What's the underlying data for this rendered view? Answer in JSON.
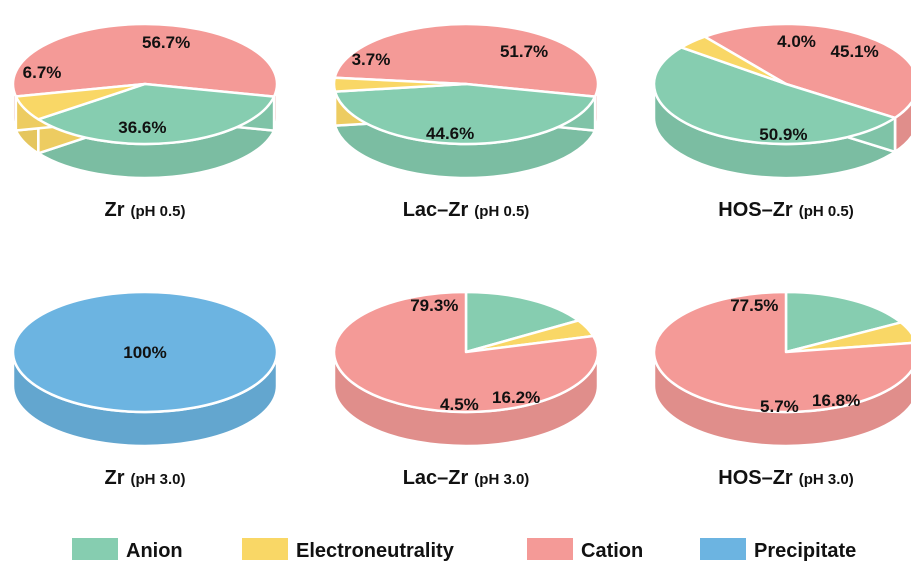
{
  "colors": {
    "anion": "#86cdb0",
    "electroneutrality": "#f9d766",
    "cation": "#f49a97",
    "precipitate": "#6cb4e1"
  },
  "chart_data": [
    {
      "type": "pie",
      "title": "Zr",
      "subtitle": "(pH 0.5)",
      "slices": [
        {
          "name": "Cation",
          "value": 56.7,
          "label": "56.7%"
        },
        {
          "name": "Anion",
          "value": 36.6,
          "label": "36.6%"
        },
        {
          "name": "Electroneutrality",
          "value": 6.7,
          "label": "6.7%"
        }
      ]
    },
    {
      "type": "pie",
      "title": "Lac–Zr",
      "subtitle": "(pH 0.5)",
      "slices": [
        {
          "name": "Cation",
          "value": 51.7,
          "label": "51.7%"
        },
        {
          "name": "Anion",
          "value": 44.6,
          "label": "44.6%"
        },
        {
          "name": "Electroneutrality",
          "value": 3.7,
          "label": "3.7%"
        }
      ]
    },
    {
      "type": "pie",
      "title": "HOS–Zr",
      "subtitle": "(pH 0.5)",
      "slices": [
        {
          "name": "Cation",
          "value": 45.1,
          "label": "45.1%"
        },
        {
          "name": "Anion",
          "value": 50.9,
          "label": "50.9%"
        },
        {
          "name": "Electroneutrality",
          "value": 4.0,
          "label": "4.0%"
        }
      ]
    },
    {
      "type": "pie",
      "title": "Zr",
      "subtitle": "(pH 3.0)",
      "slices": [
        {
          "name": "Precipitate",
          "value": 100,
          "label": "100%"
        }
      ]
    },
    {
      "type": "pie",
      "title": "Lac–Zr",
      "subtitle": "(pH 3.0)",
      "slices": [
        {
          "name": "Anion",
          "value": 16.2,
          "label": "16.2%"
        },
        {
          "name": "Electroneutrality",
          "value": 4.5,
          "label": "4.5%"
        },
        {
          "name": "Cation",
          "value": 79.3,
          "label": "79.3%"
        }
      ]
    },
    {
      "type": "pie",
      "title": "HOS–Zr",
      "subtitle": "(pH 3.0)",
      "slices": [
        {
          "name": "Anion",
          "value": 16.8,
          "label": "16.8%"
        },
        {
          "name": "Electroneutrality",
          "value": 5.7,
          "label": "5.7%"
        },
        {
          "name": "Cation",
          "value": 77.5,
          "label": "77.5%"
        }
      ]
    }
  ],
  "legend": {
    "placement": "bottom",
    "items": [
      {
        "name": "Anion",
        "color": "#86cdb0"
      },
      {
        "name": "Electroneutrality",
        "color": "#f9d766"
      },
      {
        "name": "Cation",
        "color": "#f49a97"
      },
      {
        "name": "Precipitate",
        "color": "#6cb4e1"
      }
    ]
  }
}
